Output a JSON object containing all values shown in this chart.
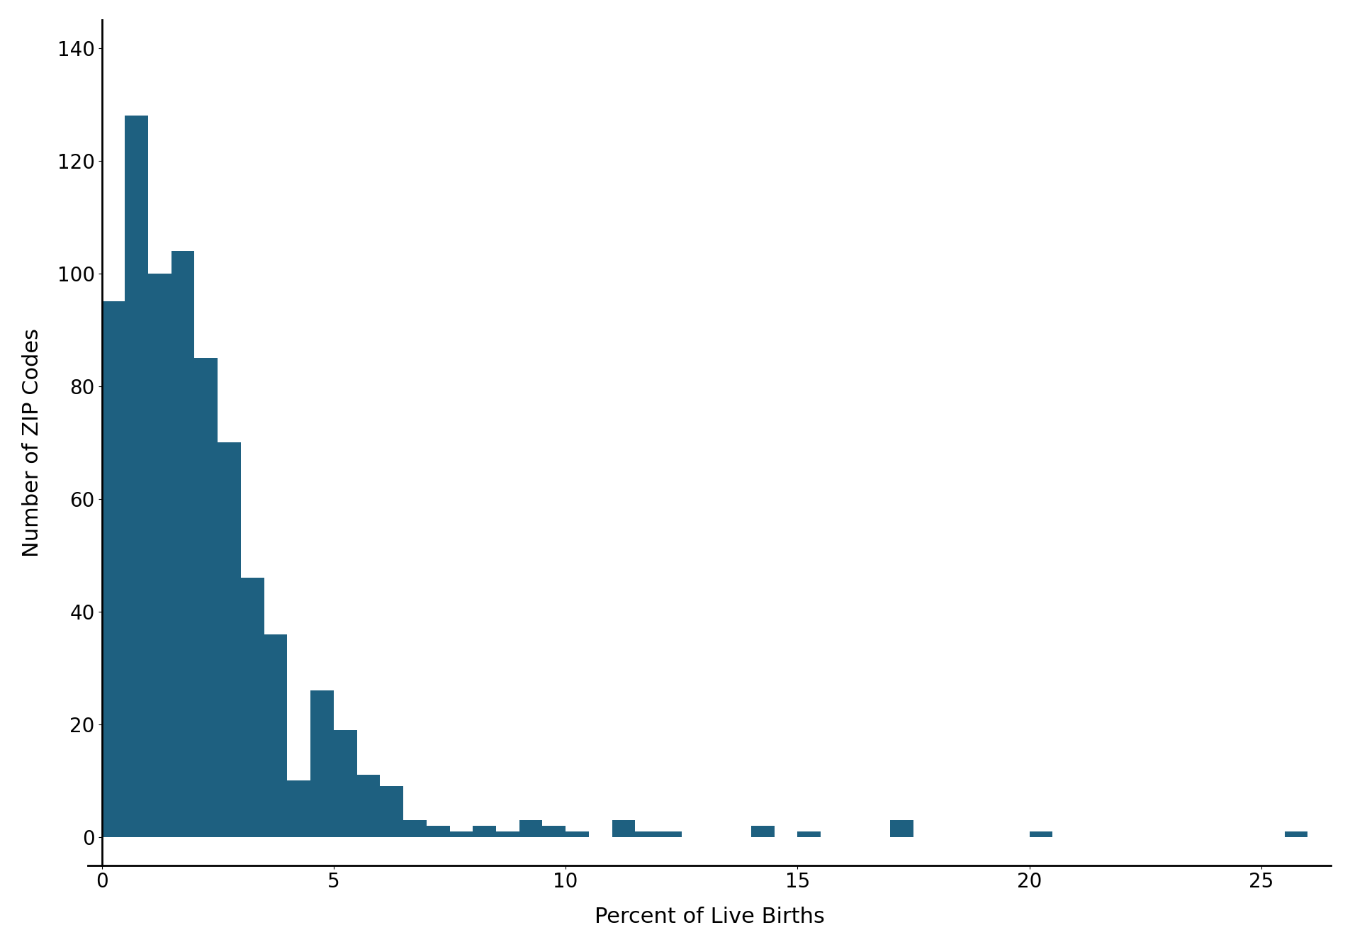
{
  "xlabel": "Percent of Live Births",
  "ylabel": "Number of ZIP Codes",
  "bar_color": "#1e6080",
  "background_color": "#ffffff",
  "bin_width": 0.5,
  "bin_starts": [
    0.0,
    0.5,
    1.0,
    1.5,
    2.0,
    2.5,
    3.0,
    3.5,
    4.0,
    4.5,
    5.0,
    5.5,
    6.0,
    6.5,
    7.0,
    7.5,
    8.0,
    8.5,
    9.0,
    9.5,
    10.0,
    10.5,
    11.0,
    11.5,
    12.0,
    12.5,
    13.0,
    13.5,
    14.0,
    14.5,
    15.0,
    15.5,
    16.0,
    16.5,
    17.0,
    17.5,
    18.0,
    18.5,
    19.0,
    19.5,
    20.0,
    20.5,
    21.0,
    21.5,
    22.0,
    22.5,
    23.0,
    23.5,
    24.0,
    24.5,
    25.0,
    25.5
  ],
  "bar_heights": [
    95,
    128,
    100,
    104,
    85,
    70,
    46,
    36,
    10,
    26,
    19,
    11,
    9,
    3,
    2,
    1,
    2,
    1,
    3,
    2,
    1,
    0,
    3,
    1,
    1,
    0,
    0,
    0,
    2,
    0,
    1,
    0,
    0,
    0,
    3,
    0,
    0,
    0,
    0,
    0,
    1,
    0,
    0,
    0,
    0,
    0,
    0,
    0,
    0,
    0,
    0,
    1
  ],
  "xlim": [
    -0.3,
    26.5
  ],
  "ylim": [
    -5,
    145
  ],
  "xticks": [
    0,
    5,
    10,
    15,
    20,
    25
  ],
  "yticks": [
    0,
    20,
    40,
    60,
    80,
    100,
    120,
    140
  ],
  "label_fontsize": 22,
  "tick_fontsize": 20,
  "spine_color": "#000000"
}
